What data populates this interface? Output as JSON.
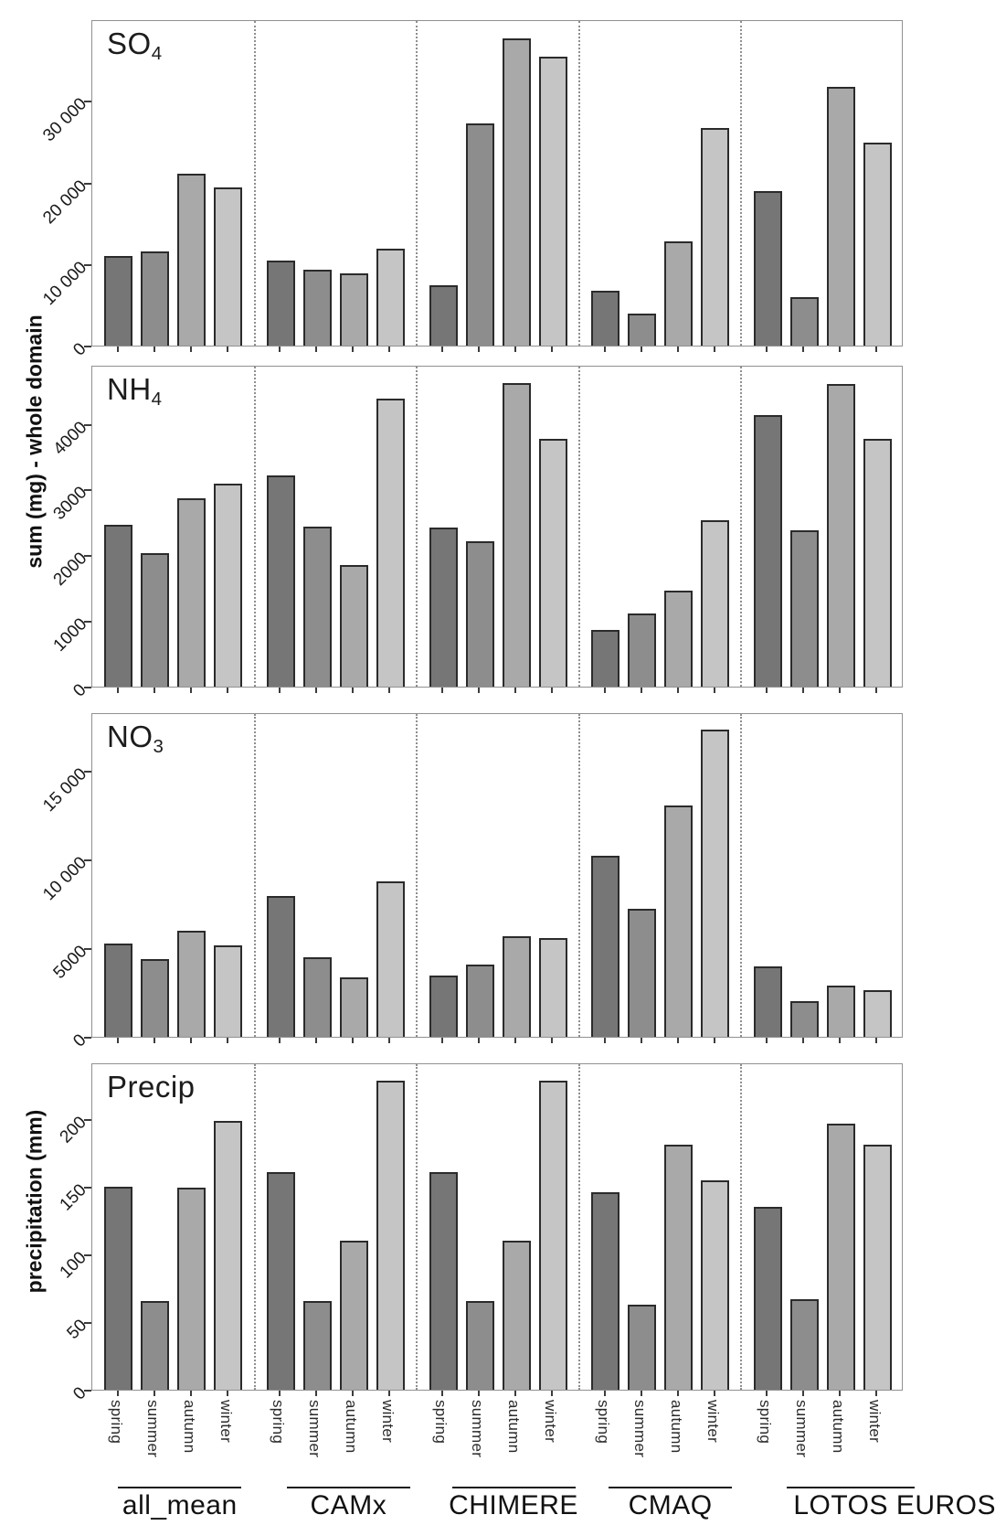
{
  "axis_titles": {
    "top": "sum (mg) - whole domain",
    "bottom": "precipitation (mm)"
  },
  "seasons": [
    "spring",
    "summer",
    "autumn",
    "winter"
  ],
  "groups": [
    "all_mean",
    "CAMx",
    "CHIMERE",
    "CMAQ",
    "LOTOS EUROS"
  ],
  "colors": {
    "spring": "#767676",
    "summer": "#8d8d8d",
    "autumn": "#a9a9a9",
    "winter": "#c5c5c5",
    "bar_border": "#2b2b2b",
    "panel_border": "#919191",
    "divider": "#8f8f8f"
  },
  "chart_data": [
    {
      "type": "bar",
      "panel_id": "SO4",
      "title_main": "SO",
      "title_sub": "4",
      "ylim": [
        0,
        40000
      ],
      "yticks": [
        {
          "v": 0,
          "label": "0"
        },
        {
          "v": 10000,
          "label": "10 000"
        },
        {
          "v": 20000,
          "label": "20 000"
        },
        {
          "v": 30000,
          "label": "30 000"
        }
      ],
      "categories": [
        "spring",
        "summer",
        "autumn",
        "winter"
      ],
      "series": [
        {
          "name": "all_mean",
          "values": [
            11000,
            11600,
            21200,
            19500
          ]
        },
        {
          "name": "CAMx",
          "values": [
            10500,
            9300,
            8900,
            11900
          ]
        },
        {
          "name": "CHIMERE",
          "values": [
            7400,
            27400,
            37900,
            35600
          ]
        },
        {
          "name": "CMAQ",
          "values": [
            6800,
            4000,
            12900,
            26800
          ]
        },
        {
          "name": "LOTOS EUROS",
          "values": [
            19000,
            6000,
            31900,
            25000
          ]
        }
      ]
    },
    {
      "type": "bar",
      "panel_id": "NH4",
      "title_main": "NH",
      "title_sub": "4",
      "ylim": [
        0,
        4900
      ],
      "yticks": [
        {
          "v": 0,
          "label": "0"
        },
        {
          "v": 1000,
          "label": "1000"
        },
        {
          "v": 2000,
          "label": "2000"
        },
        {
          "v": 3000,
          "label": "3000"
        },
        {
          "v": 4000,
          "label": "4000"
        }
      ],
      "categories": [
        "spring",
        "summer",
        "autumn",
        "winter"
      ],
      "series": [
        {
          "name": "all_mean",
          "values": [
            2480,
            2050,
            2880,
            3110
          ]
        },
        {
          "name": "CAMx",
          "values": [
            3230,
            2450,
            1860,
            4410
          ]
        },
        {
          "name": "CHIMERE",
          "values": [
            2430,
            2220,
            4650,
            3800
          ]
        },
        {
          "name": "CMAQ",
          "values": [
            870,
            1120,
            1470,
            2550
          ]
        },
        {
          "name": "LOTOS EUROS",
          "values": [
            4160,
            2400,
            4640,
            3800
          ]
        }
      ]
    },
    {
      "type": "bar",
      "panel_id": "NO3",
      "title_main": "NO",
      "title_sub": "3",
      "ylim": [
        0,
        18300
      ],
      "yticks": [
        {
          "v": 0,
          "label": "0"
        },
        {
          "v": 5000,
          "label": "5000"
        },
        {
          "v": 10000,
          "label": "10 000"
        },
        {
          "v": 15000,
          "label": "15 000"
        }
      ],
      "categories": [
        "spring",
        "summer",
        "autumn",
        "winter"
      ],
      "series": [
        {
          "name": "all_mean",
          "values": [
            5300,
            4400,
            6000,
            5200
          ]
        },
        {
          "name": "CAMx",
          "values": [
            8000,
            4500,
            3350,
            8800
          ]
        },
        {
          "name": "CHIMERE",
          "values": [
            3500,
            4100,
            5700,
            5600
          ]
        },
        {
          "name": "CMAQ",
          "values": [
            10250,
            7260,
            13100,
            17400
          ]
        },
        {
          "name": "LOTOS EUROS",
          "values": [
            4000,
            2000,
            2900,
            2650
          ]
        }
      ]
    },
    {
      "type": "bar",
      "panel_id": "Precip",
      "title_main": "Precip",
      "title_sub": "",
      "ylim": [
        0,
        242
      ],
      "yticks": [
        {
          "v": 0,
          "label": "0"
        },
        {
          "v": 50,
          "label": "50"
        },
        {
          "v": 100,
          "label": "100"
        },
        {
          "v": 150,
          "label": "150"
        },
        {
          "v": 200,
          "label": "200"
        }
      ],
      "categories": [
        "spring",
        "summer",
        "autumn",
        "winter"
      ],
      "series": [
        {
          "name": "all_mean",
          "values": [
            151,
            66,
            150,
            200
          ]
        },
        {
          "name": "CAMx",
          "values": [
            162,
            66,
            111,
            230
          ]
        },
        {
          "name": "CHIMERE",
          "values": [
            162,
            66,
            111,
            230
          ]
        },
        {
          "name": "CMAQ",
          "values": [
            147,
            63,
            182,
            156
          ]
        },
        {
          "name": "LOTOS EUROS",
          "values": [
            136,
            67,
            198,
            182
          ]
        }
      ]
    }
  ]
}
